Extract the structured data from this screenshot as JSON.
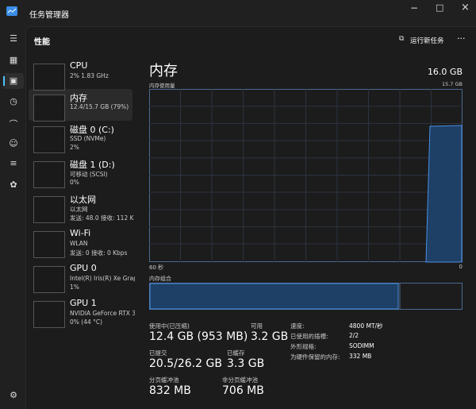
{
  "window": {
    "title": "任务管理器"
  },
  "header": {
    "title": "性能",
    "run_task": "运行新任务"
  },
  "list": [
    {
      "name": "CPU",
      "lines": [
        "2% 1.83 GHz"
      ]
    },
    {
      "name": "内存",
      "lines": [
        "12.4/15.7 GB (79%)"
      ]
    },
    {
      "name": "磁盘 0 (C:)",
      "lines": [
        "SSD (NVMe)",
        "2%"
      ]
    },
    {
      "name": "磁盘 1 (D:)",
      "lines": [
        "可移动 (SCSI)",
        "0%"
      ]
    },
    {
      "name": "以太网",
      "lines": [
        "以太网",
        "发送: 48.0 接收: 112 K"
      ]
    },
    {
      "name": "Wi-Fi",
      "lines": [
        "WLAN",
        "发送: 0 接收: 0 Kbps"
      ]
    },
    {
      "name": "GPU 0",
      "lines": [
        "Intel(R) Iris(R) Xe Grap",
        "1%"
      ]
    },
    {
      "name": "GPU 1",
      "lines": [
        "NVIDIA GeForce RTX 3",
        "0% (44 °C)"
      ]
    }
  ],
  "detail": {
    "title": "内存",
    "capacity": "16.0 GB",
    "usage_label": "内存使用量",
    "usage_max": "15.7 GB",
    "time_left": "60 秒",
    "time_right": "0",
    "composition": "内存组合",
    "stats": [
      {
        "label": "使用中(已压缩)",
        "value": "12.4 GB (953 MB)"
      },
      {
        "label": "可用",
        "value": "3.2 GB"
      },
      {
        "label": "已提交",
        "value": "20.5/26.2 GB"
      },
      {
        "label": "已缓存",
        "value": "3.3 GB"
      },
      {
        "label": "分页缓冲池",
        "value": "832 MB"
      },
      {
        "label": "非分页缓冲池",
        "value": "706 MB"
      }
    ],
    "specs": [
      {
        "label": "速度:",
        "value": "4800 MT/秒"
      },
      {
        "label": "已使用的插槽:",
        "value": "2/2"
      },
      {
        "label": "外形规格:",
        "value": "SODIMM"
      },
      {
        "label": "为硬件保留的内存:",
        "value": "332 MB"
      }
    ]
  }
}
